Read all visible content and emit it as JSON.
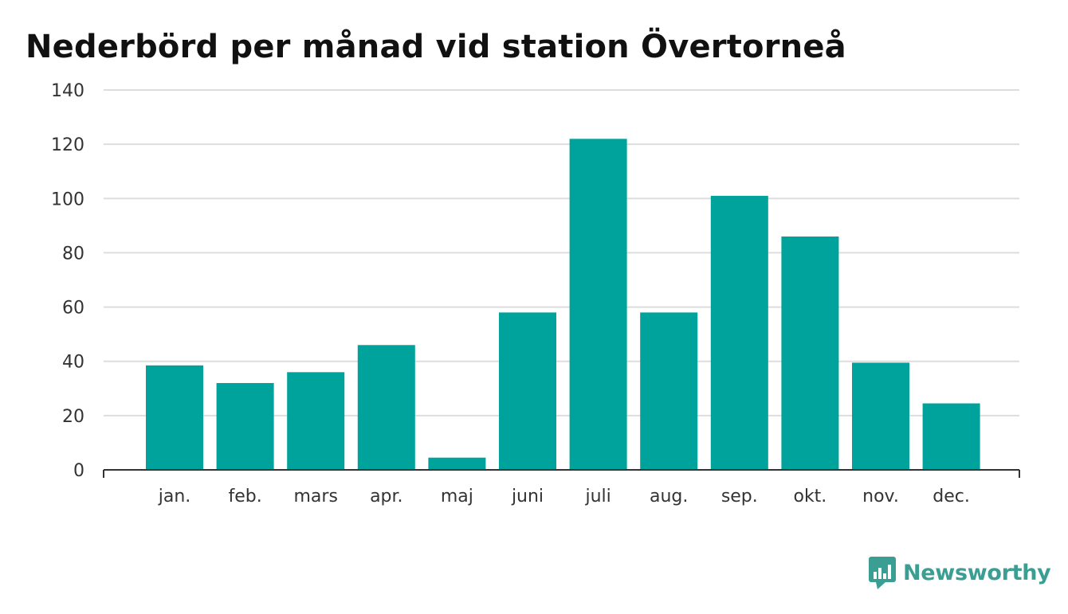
{
  "title": "Nederbörd per månad vid station Övertorneå",
  "brand": {
    "name": "Newsworthy",
    "icon": "newsworthy-logo-icon",
    "color": "#3a9e93"
  },
  "colors": {
    "bar": "#00a39b",
    "grid": "#dddddd",
    "axis": "#333333"
  },
  "chart_data": {
    "type": "bar",
    "categories": [
      "jan.",
      "feb.",
      "mars",
      "apr.",
      "maj",
      "juni",
      "juli",
      "aug.",
      "sep.",
      "okt.",
      "nov.",
      "dec."
    ],
    "values": [
      38.5,
      32,
      36,
      46,
      4.5,
      58,
      122,
      58,
      101,
      86,
      39.5,
      24.5
    ],
    "xlabel": "",
    "ylabel": "",
    "ylim": [
      0,
      140
    ],
    "yticks": [
      0,
      20,
      40,
      60,
      80,
      100,
      120,
      140
    ],
    "grid": true,
    "legend": "none"
  }
}
